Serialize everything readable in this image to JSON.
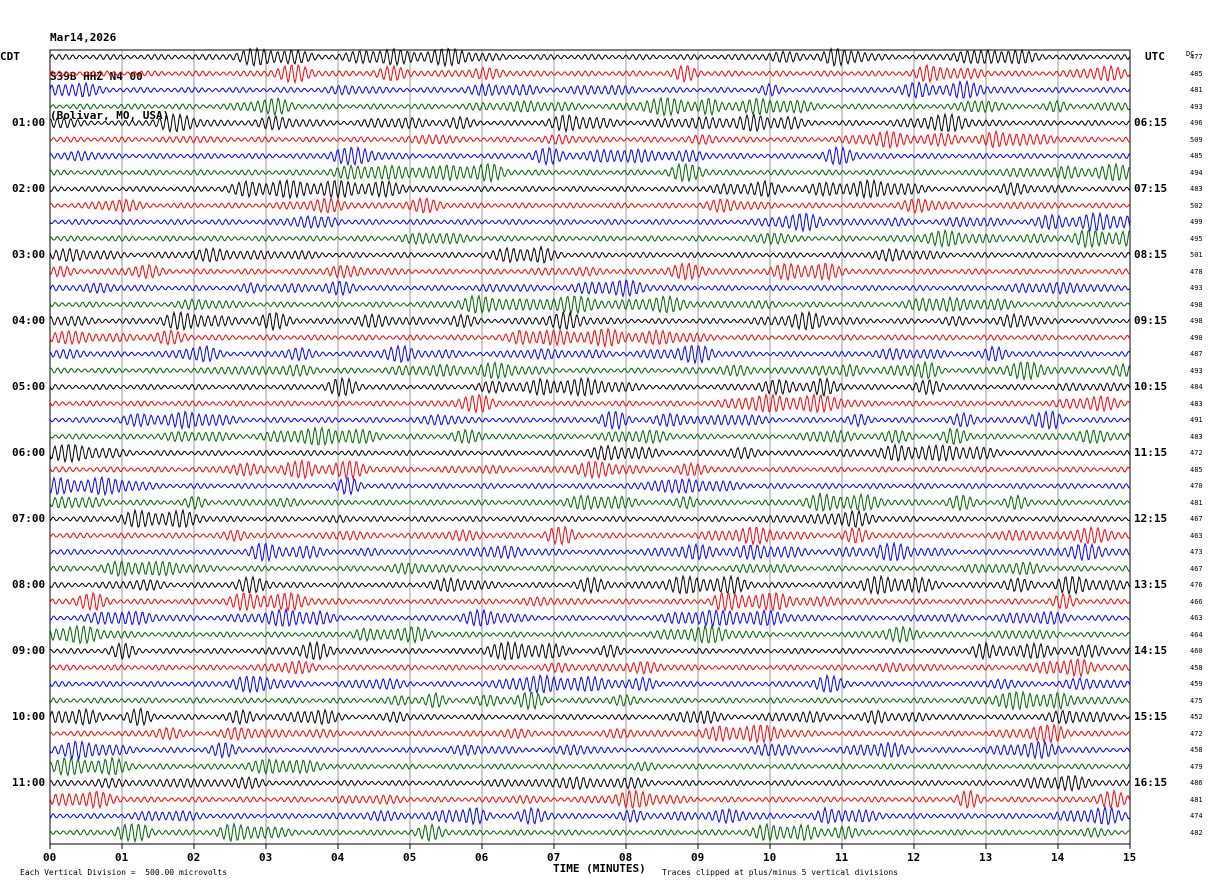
{
  "header": {
    "date": "Mar14,2026",
    "station": "S39B HHZ N4 00",
    "location": "(Bolivar, MO, USA)"
  },
  "left_tz": "CDT",
  "right_tz": "UTC",
  "dc_label": "DC",
  "x_axis_title": "TIME (MINUTES)",
  "footer": {
    "scale_note": "Each Vertical Division =  500.00 microvolts",
    "clip_note": "Traces clipped at plus/minus 5 vertical divisions"
  },
  "colors": {
    "trace_cycle": [
      "#000000",
      "#ff0000",
      "#0000ff",
      "#006400"
    ],
    "grid": "#000000"
  },
  "chart_data": {
    "type": "line",
    "title": "",
    "xlabel": "TIME (MINUTES)",
    "ylabel": "",
    "xlim": [
      0,
      15
    ],
    "x_ticks": [
      "00",
      "01",
      "02",
      "03",
      "04",
      "05",
      "06",
      "07",
      "08",
      "09",
      "10",
      "11",
      "12",
      "13",
      "14",
      "15"
    ],
    "rows_per_hour": 4,
    "row_count": 48,
    "left_hour_labels": [
      "01:00",
      "02:00",
      "03:00",
      "04:00",
      "05:00",
      "06:00",
      "07:00",
      "08:00",
      "09:00",
      "10:00",
      "11:00"
    ],
    "right_hour_labels": [
      "06:15",
      "07:15",
      "08:15",
      "09:15",
      "10:15",
      "11:15",
      "12:15",
      "13:15",
      "14:15",
      "15:15",
      "16:15"
    ],
    "dc_offsets": [
      477,
      485,
      481,
      493,
      496,
      509,
      485,
      494,
      483,
      502,
      499,
      495,
      501,
      478,
      493,
      498,
      498,
      490,
      487,
      493,
      484,
      483,
      491,
      483,
      472,
      485,
      470,
      481,
      467,
      463,
      473,
      467,
      476,
      466,
      463,
      464,
      460,
      458,
      459,
      475,
      452,
      472,
      458,
      479,
      486,
      481,
      474,
      482
    ]
  }
}
